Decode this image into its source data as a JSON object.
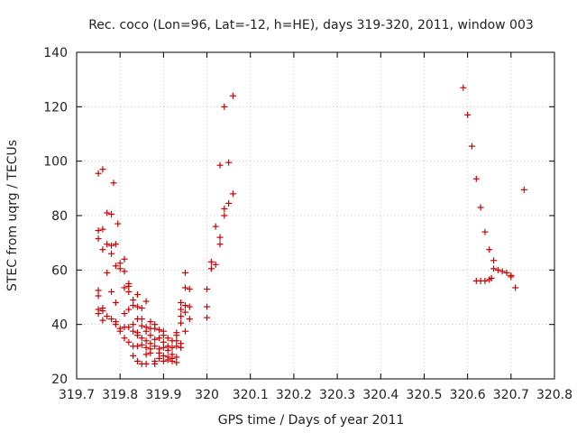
{
  "chart_data": {
    "type": "scatter",
    "title": "Rec. coco (Lon=96, Lat=-12, h=HE), days 319-320, 2011, window 003",
    "xlabel": "GPS time / Days of year 2011",
    "ylabel": "STEC from uqrg / TECUs",
    "xlim": [
      319.7,
      320.8
    ],
    "ylim": [
      20,
      140
    ],
    "xticks": [
      "319.7",
      "319.8",
      "319.9",
      "320",
      "320.1",
      "320.2",
      "320.3",
      "320.4",
      "320.5",
      "320.6",
      "320.7",
      "320.8"
    ],
    "yticks": [
      "20",
      "40",
      "60",
      "80",
      "100",
      "120",
      "140"
    ],
    "grid": true,
    "marker": "+",
    "color": "#cc0000",
    "points": [
      [
        319.75,
        95.5
      ],
      [
        319.75,
        74.5
      ],
      [
        319.75,
        71.5
      ],
      [
        319.75,
        52.5
      ],
      [
        319.75,
        50.5
      ],
      [
        319.75,
        45.5
      ],
      [
        319.75,
        44.0
      ],
      [
        319.76,
        97.0
      ],
      [
        319.76,
        75.0
      ],
      [
        319.76,
        67.5
      ],
      [
        319.76,
        46.0
      ],
      [
        319.76,
        45.0
      ],
      [
        319.76,
        41.5
      ],
      [
        319.77,
        81.0
      ],
      [
        319.77,
        69.5
      ],
      [
        319.77,
        59.0
      ],
      [
        319.77,
        43.0
      ],
      [
        319.78,
        80.5
      ],
      [
        319.78,
        69.0
      ],
      [
        319.78,
        66.0
      ],
      [
        319.78,
        52.0
      ],
      [
        319.78,
        42.0
      ],
      [
        319.785,
        92.0
      ],
      [
        319.79,
        69.5
      ],
      [
        319.79,
        61.5
      ],
      [
        319.79,
        48.0
      ],
      [
        319.79,
        41.0
      ],
      [
        319.79,
        40.0
      ],
      [
        319.795,
        77.0
      ],
      [
        319.8,
        62.5
      ],
      [
        319.8,
        60.5
      ],
      [
        319.8,
        38.5
      ],
      [
        319.8,
        37.5
      ],
      [
        319.81,
        64.0
      ],
      [
        319.81,
        59.5
      ],
      [
        319.81,
        53.5
      ],
      [
        319.81,
        44.0
      ],
      [
        319.81,
        39.0
      ],
      [
        319.81,
        35.0
      ],
      [
        319.82,
        55.0
      ],
      [
        319.82,
        54.0
      ],
      [
        319.82,
        52.0
      ],
      [
        319.82,
        45.5
      ],
      [
        319.82,
        39.0
      ],
      [
        319.82,
        33.5
      ],
      [
        319.83,
        49.0
      ],
      [
        319.83,
        47.0
      ],
      [
        319.83,
        40.0
      ],
      [
        319.83,
        37.5
      ],
      [
        319.83,
        32.0
      ],
      [
        319.83,
        28.5
      ],
      [
        319.84,
        51.0
      ],
      [
        319.84,
        46.5
      ],
      [
        319.84,
        42.0
      ],
      [
        319.84,
        37.0
      ],
      [
        319.84,
        36.0
      ],
      [
        319.84,
        32.0
      ],
      [
        319.84,
        26.5
      ],
      [
        319.85,
        46.0
      ],
      [
        319.85,
        42.0
      ],
      [
        319.85,
        39.5
      ],
      [
        319.85,
        35.0
      ],
      [
        319.85,
        32.5
      ],
      [
        319.85,
        25.5
      ],
      [
        319.86,
        48.5
      ],
      [
        319.86,
        39.0
      ],
      [
        319.86,
        37.5
      ],
      [
        319.86,
        34.0
      ],
      [
        319.86,
        31.5
      ],
      [
        319.86,
        29.0
      ],
      [
        319.86,
        25.5
      ],
      [
        319.87,
        41.0
      ],
      [
        319.87,
        38.5
      ],
      [
        319.87,
        36.0
      ],
      [
        319.87,
        33.0
      ],
      [
        319.87,
        31.0
      ],
      [
        319.87,
        29.5
      ],
      [
        319.88,
        40.0
      ],
      [
        319.88,
        38.5
      ],
      [
        319.88,
        34.5
      ],
      [
        319.88,
        32.0
      ],
      [
        319.88,
        26.5
      ],
      [
        319.88,
        25.5
      ],
      [
        319.89,
        38.0
      ],
      [
        319.89,
        35.0
      ],
      [
        319.89,
        31.0
      ],
      [
        319.89,
        29.5
      ],
      [
        319.89,
        27.5
      ],
      [
        319.9,
        37.5
      ],
      [
        319.9,
        36.0
      ],
      [
        319.9,
        33.5
      ],
      [
        319.9,
        31.5
      ],
      [
        319.9,
        28.5
      ],
      [
        319.9,
        26.5
      ],
      [
        319.91,
        35.0
      ],
      [
        319.91,
        32.0
      ],
      [
        319.91,
        30.5
      ],
      [
        319.91,
        28.0
      ],
      [
        319.91,
        27.0
      ],
      [
        319.92,
        34.0
      ],
      [
        319.92,
        31.5
      ],
      [
        319.92,
        29.0
      ],
      [
        319.92,
        27.5
      ],
      [
        319.92,
        26.5
      ],
      [
        319.93,
        37.0
      ],
      [
        319.93,
        36.0
      ],
      [
        319.93,
        34.0
      ],
      [
        319.93,
        32.0
      ],
      [
        319.93,
        28.0
      ],
      [
        319.93,
        26.0
      ],
      [
        319.94,
        48.0
      ],
      [
        319.94,
        45.5
      ],
      [
        319.94,
        43.0
      ],
      [
        319.94,
        40.5
      ],
      [
        319.94,
        33.0
      ],
      [
        319.94,
        31.5
      ],
      [
        319.95,
        59.0
      ],
      [
        319.95,
        53.5
      ],
      [
        319.95,
        47.0
      ],
      [
        319.95,
        44.5
      ],
      [
        319.95,
        37.5
      ],
      [
        319.96,
        53.0
      ],
      [
        319.96,
        46.5
      ],
      [
        319.96,
        42.0
      ],
      [
        320.0,
        53.0
      ],
      [
        320.0,
        46.5
      ],
      [
        320.0,
        42.5
      ],
      [
        320.01,
        63.0
      ],
      [
        320.01,
        60.5
      ],
      [
        320.02,
        76.0
      ],
      [
        320.02,
        62.0
      ],
      [
        320.03,
        98.5
      ],
      [
        320.03,
        72.0
      ],
      [
        320.03,
        69.5
      ],
      [
        320.04,
        120.0
      ],
      [
        320.04,
        82.5
      ],
      [
        320.04,
        80.0
      ],
      [
        320.05,
        99.5
      ],
      [
        320.05,
        84.5
      ],
      [
        320.06,
        124.0
      ],
      [
        320.06,
        88.0
      ],
      [
        320.59,
        127.0
      ],
      [
        320.6,
        117.0
      ],
      [
        320.61,
        105.5
      ],
      [
        320.62,
        93.5
      ],
      [
        320.63,
        83.0
      ],
      [
        320.64,
        74.0
      ],
      [
        320.65,
        67.5
      ],
      [
        320.66,
        63.5
      ],
      [
        320.66,
        60.5
      ],
      [
        320.67,
        60.0
      ],
      [
        320.68,
        59.5
      ],
      [
        320.69,
        59.0
      ],
      [
        320.7,
        57.5
      ],
      [
        320.71,
        53.5
      ],
      [
        320.62,
        56.0
      ],
      [
        320.63,
        56.0
      ],
      [
        320.64,
        56.0
      ],
      [
        320.65,
        56.5
      ],
      [
        320.655,
        57.0
      ],
      [
        320.7,
        58.0
      ],
      [
        320.73,
        89.5
      ]
    ]
  }
}
